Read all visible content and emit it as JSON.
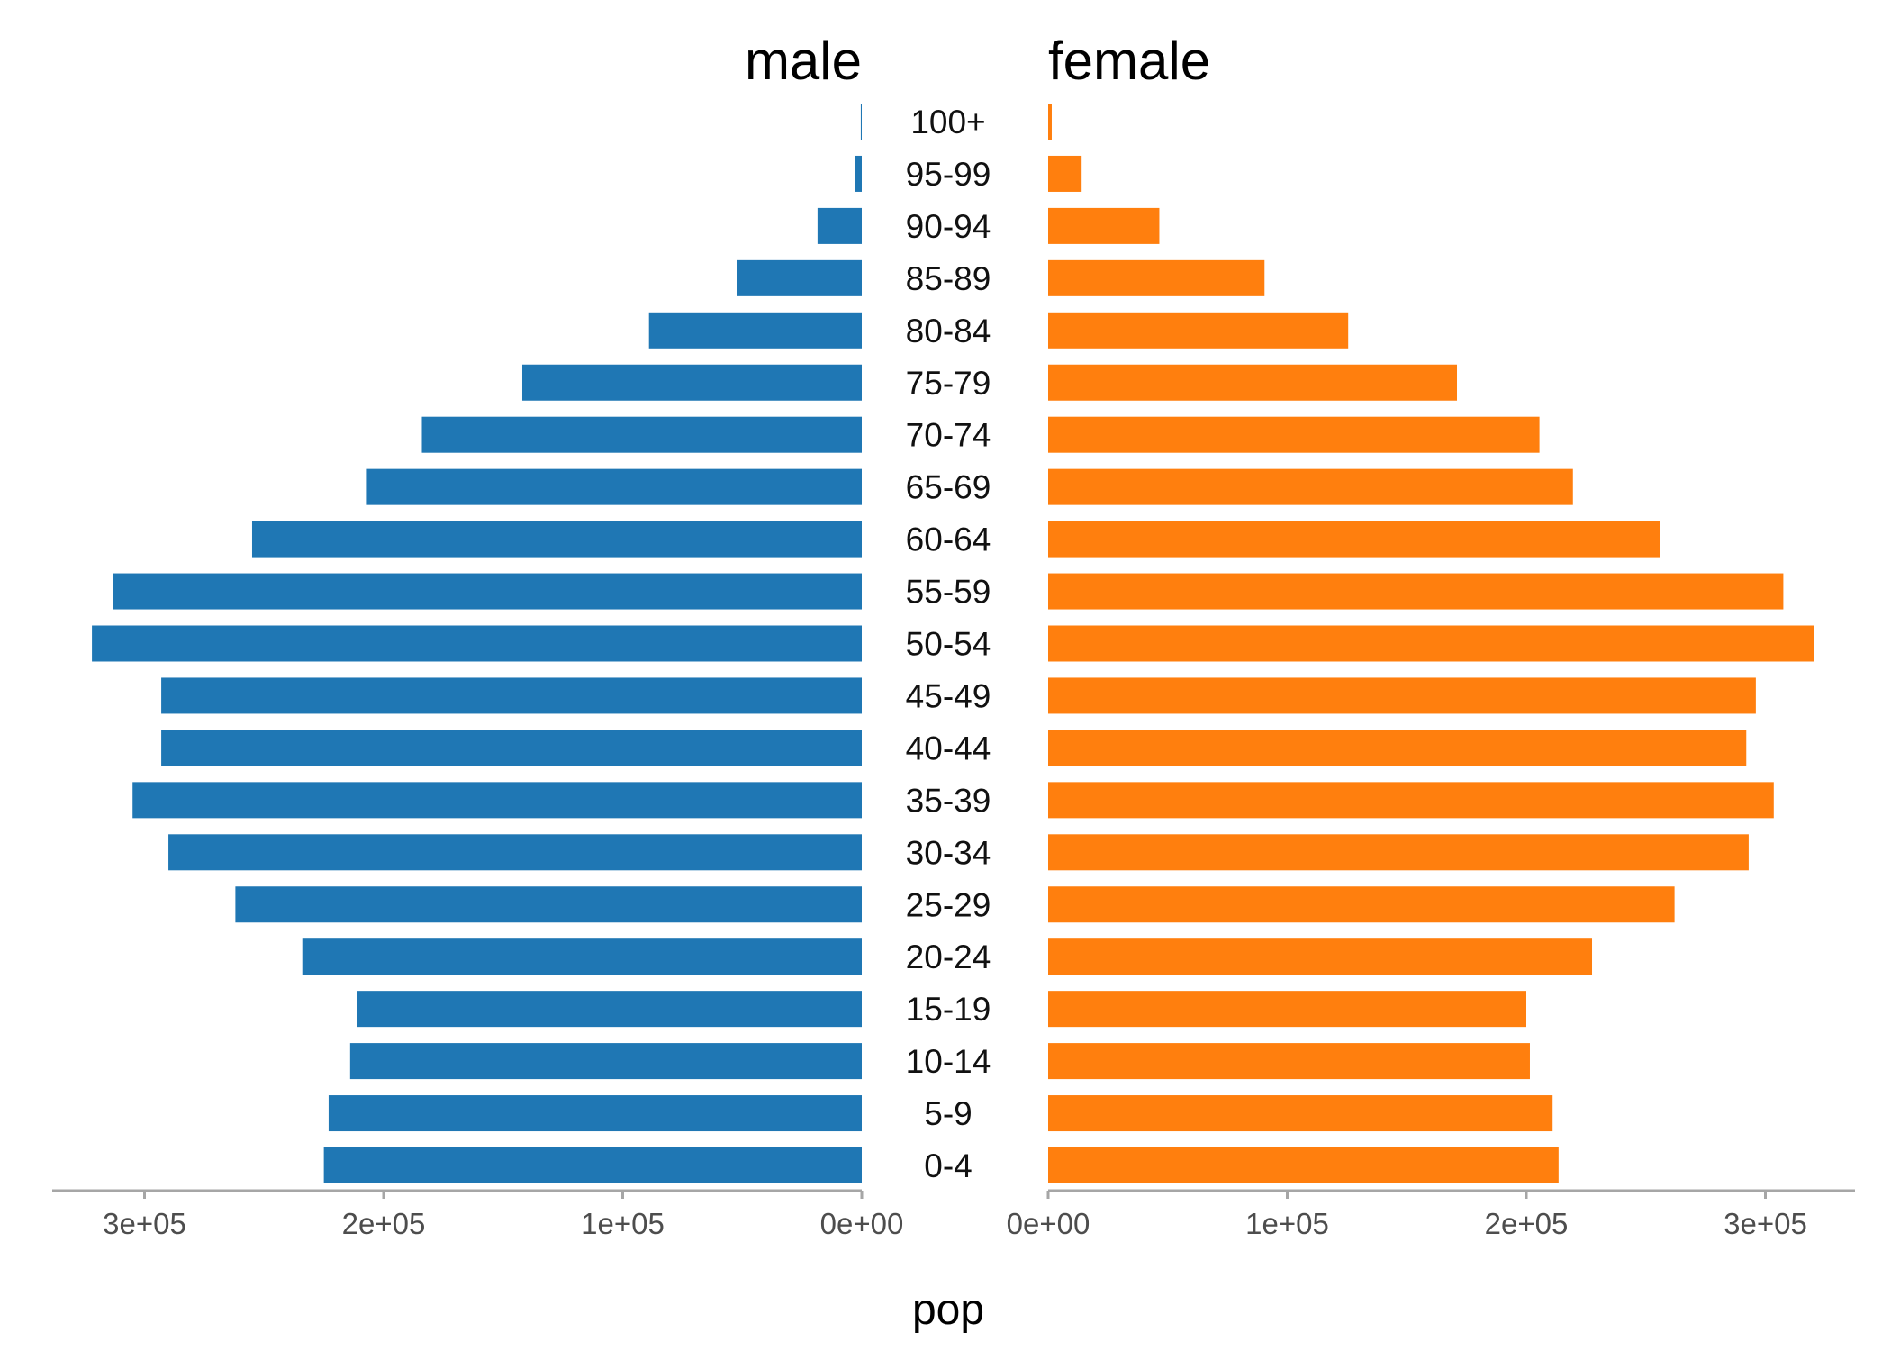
{
  "chart_data": {
    "type": "bar",
    "orientation": "horizontal",
    "subtype": "population-pyramid",
    "categories": [
      "100+",
      "95-99",
      "90-94",
      "85-89",
      "80-84",
      "75-79",
      "70-74",
      "65-69",
      "60-64",
      "55-59",
      "50-54",
      "45-49",
      "40-44",
      "35-39",
      "30-34",
      "25-29",
      "20-24",
      "15-19",
      "10-14",
      "5-9",
      "0-4"
    ],
    "series": [
      {
        "name": "male",
        "color": "#1f77b4",
        "values": [
          400,
          3000,
          18500,
          52000,
          89000,
          142000,
          184000,
          207000,
          255000,
          313000,
          322000,
          293000,
          293000,
          305000,
          290000,
          262000,
          234000,
          211000,
          214000,
          223000,
          225000
        ]
      },
      {
        "name": "female",
        "color": "#ff7f0e",
        "values": [
          1500,
          14000,
          46500,
          90500,
          125500,
          171000,
          205500,
          219500,
          256000,
          307500,
          320500,
          296000,
          292000,
          303500,
          293000,
          262000,
          227500,
          200000,
          201500,
          211000,
          213500
        ]
      }
    ],
    "panels": [
      {
        "title": "male",
        "direction": "reversed",
        "xlim": [
          0,
          340000
        ],
        "ticks": [
          0,
          100000,
          200000,
          300000
        ],
        "tick_labels": [
          "0e+00",
          "1e+05",
          "2e+05",
          "3e+05"
        ]
      },
      {
        "title": "female",
        "direction": "normal",
        "xlim": [
          0,
          340000
        ],
        "ticks": [
          0,
          100000,
          200000,
          300000
        ],
        "tick_labels": [
          "0e+00",
          "1e+05",
          "2e+05",
          "3e+05"
        ]
      }
    ],
    "xlabel": "pop",
    "ylabel": "",
    "grid": false,
    "legend": "none"
  }
}
